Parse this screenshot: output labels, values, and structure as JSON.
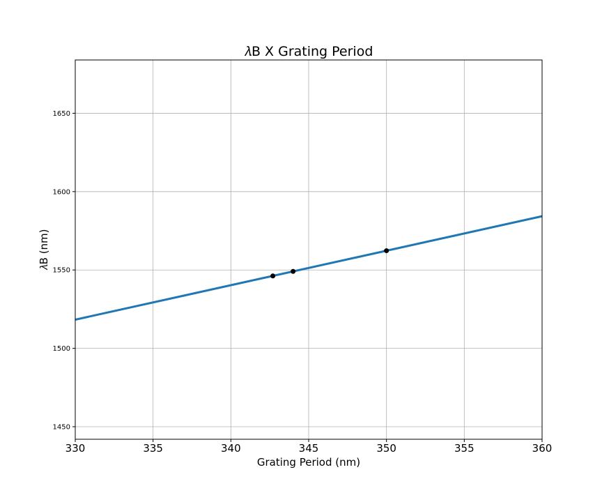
{
  "chart_data": {
    "type": "line",
    "title": "𝜆B X Grating Period",
    "xlabel": "Grating Period (nm)",
    "ylabel": "𝜆B (nm)",
    "xlim": [
      330,
      360
    ],
    "ylim": [
      1442,
      1684
    ],
    "xticks": [
      330,
      335,
      340,
      345,
      350,
      355,
      360
    ],
    "yticks": [
      1450,
      1500,
      1550,
      1600,
      1650
    ],
    "grid": true,
    "series": [
      {
        "kind": "line",
        "color": "#1f77b4",
        "x": [
          330,
          360
        ],
        "y": [
          1518.3,
          1584.3
        ]
      },
      {
        "kind": "points",
        "color": "#000000",
        "x": [
          342.7,
          344.0,
          350.0
        ],
        "y": [
          1546.2,
          1549.1,
          1562.3
        ]
      }
    ]
  }
}
